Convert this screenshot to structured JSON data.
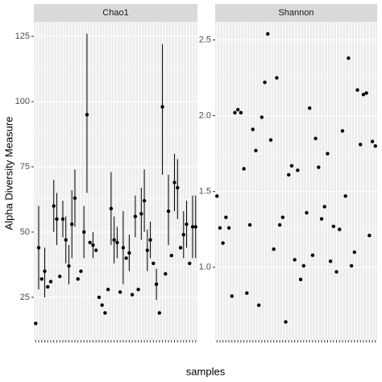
{
  "chart_data": [
    {
      "type": "errorbar-scatter",
      "title": "Chao1",
      "xlabel": "samples",
      "ylabel": "Alpha Diversity Measure",
      "categories": [
        null,
        null,
        null,
        null,
        null,
        null,
        null,
        null,
        null,
        null,
        null,
        null,
        null,
        null,
        null,
        null,
        null,
        null,
        null,
        null,
        null,
        null,
        null,
        null,
        null,
        null,
        null,
        null,
        null,
        null,
        null,
        null,
        null,
        null,
        null,
        null,
        null,
        null,
        null,
        null,
        null,
        null,
        null,
        null,
        null,
        null,
        null,
        null,
        null,
        null,
        null,
        null,
        null,
        null
      ],
      "values": [
        15,
        44,
        32,
        35,
        29,
        31,
        60,
        55,
        33,
        55,
        47,
        37,
        53,
        63,
        32,
        35,
        50,
        95,
        46,
        45,
        43,
        25,
        22,
        19,
        28,
        59,
        47,
        46,
        27,
        44,
        40,
        42,
        26,
        56,
        28,
        57,
        62,
        43,
        47,
        38,
        30,
        19,
        98,
        34,
        58,
        41,
        69,
        67,
        44,
        49,
        53,
        38,
        52,
        52
      ],
      "error_low": [
        null,
        28,
        null,
        25,
        null,
        null,
        50,
        45,
        null,
        48,
        38,
        30,
        40,
        52,
        null,
        null,
        40,
        65,
        null,
        40,
        null,
        null,
        null,
        null,
        null,
        45,
        38,
        40,
        null,
        30,
        null,
        35,
        null,
        48,
        null,
        47,
        50,
        35,
        40,
        null,
        24,
        null,
        72,
        null,
        45,
        null,
        58,
        55,
        null,
        40,
        44,
        null,
        40,
        40
      ],
      "error_high": [
        null,
        60,
        null,
        44,
        null,
        null,
        70,
        65,
        null,
        62,
        56,
        45,
        66,
        74,
        null,
        null,
        60,
        126,
        null,
        50,
        null,
        null,
        null,
        null,
        null,
        73,
        56,
        52,
        null,
        58,
        null,
        49,
        null,
        64,
        null,
        67,
        74,
        51,
        54,
        null,
        36,
        null,
        122,
        null,
        72,
        null,
        80,
        78,
        null,
        58,
        62,
        null,
        64,
        64
      ],
      "color": "#000000",
      "ylim": [
        8.6,
        130.6
      ],
      "yticks": [
        25,
        50,
        75,
        100,
        125
      ],
      "grid": true
    },
    {
      "type": "scatter",
      "title": "Shannon",
      "categories": [
        null,
        null,
        null,
        null,
        null,
        null,
        null,
        null,
        null,
        null,
        null,
        null,
        null,
        null,
        null,
        null,
        null,
        null,
        null,
        null,
        null,
        null,
        null,
        null,
        null,
        null,
        null,
        null,
        null,
        null,
        null,
        null,
        null,
        null,
        null,
        null,
        null,
        null,
        null,
        null,
        null,
        null,
        null,
        null,
        null,
        null,
        null,
        null,
        null,
        null,
        null,
        null,
        null,
        null
      ],
      "values": [
        1.47,
        1.26,
        1.16,
        1.33,
        1.26,
        0.81,
        2.02,
        2.04,
        2.02,
        1.65,
        0.83,
        1.28,
        1.91,
        1.77,
        0.75,
        1.99,
        2.22,
        2.54,
        1.84,
        1.12,
        2.25,
        1.28,
        1.33,
        0.64,
        1.61,
        1.67,
        1.05,
        1.64,
        0.92,
        1.01,
        1.36,
        2.05,
        1.08,
        1.85,
        1.66,
        1.32,
        1.4,
        1.75,
        1.04,
        1.27,
        0.97,
        1.25,
        1.9,
        1.47,
        2.38,
        1.01,
        1.1,
        2.17,
        1.81,
        2.14,
        2.15,
        1.21,
        1.83,
        1.8
      ],
      "color": "#000000",
      "ylim": [
        0.52,
        2.62
      ],
      "yticks": [
        {
          "value": 1,
          "label": "1.0"
        },
        1.5,
        {
          "value": 2,
          "label": "2.0"
        },
        2.5
      ],
      "grid": true
    }
  ]
}
